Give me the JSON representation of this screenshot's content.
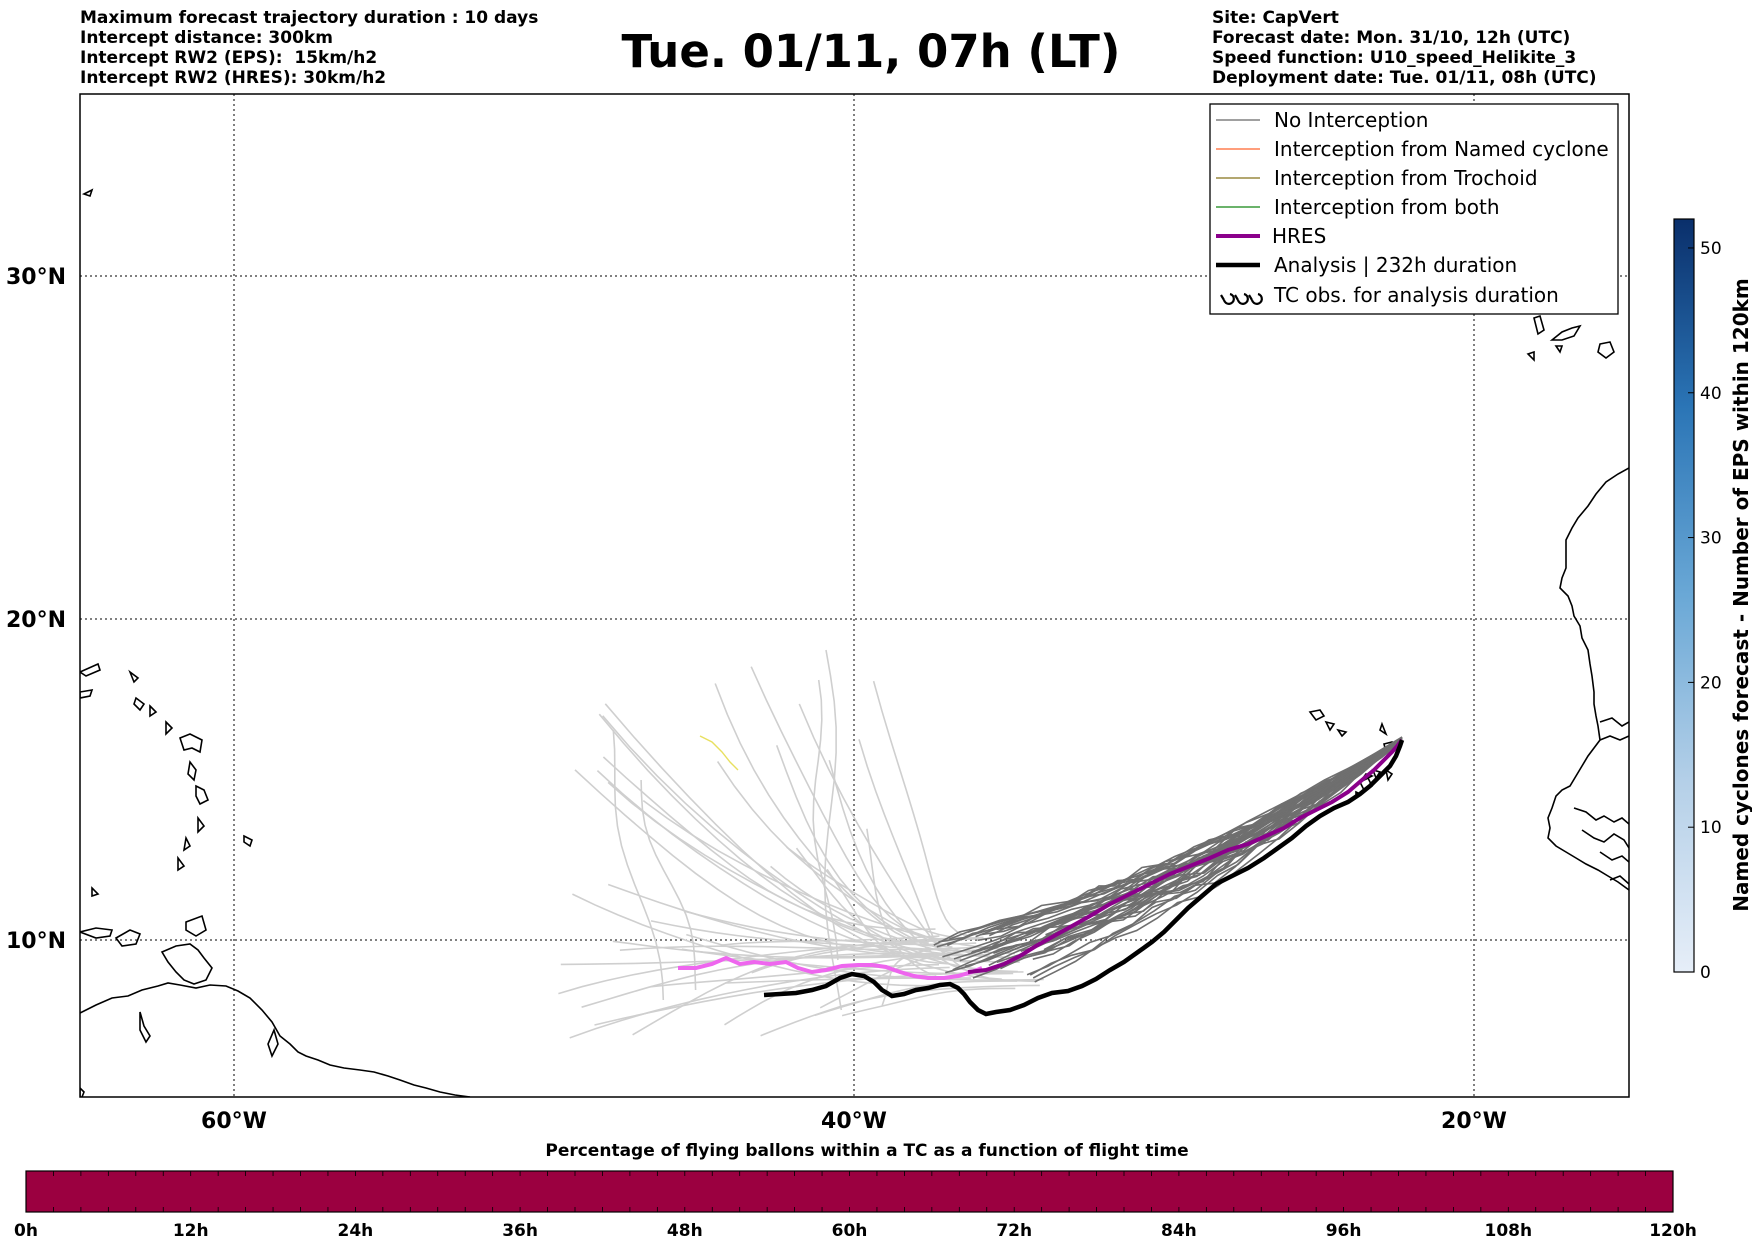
{
  "header": {
    "left_lines": [
      "Maximum forecast trajectory duration : 10 days",
      "Intercept distance: 300km",
      "Intercept RW2 (EPS):  15km/h2",
      "Intercept RW2 (HRES): 30km/h2"
    ],
    "title": "Tue. 01/11, 07h (LT)",
    "right_lines": [
      "Site: CapVert",
      "Forecast date: Mon. 31/10, 12h (UTC)",
      "Speed function: U10_speed_Helikite_3",
      "Deployment date: Tue. 01/11, 08h (UTC)"
    ]
  },
  "map": {
    "lat_labels": [
      "30°N",
      "20°N",
      "10°N"
    ],
    "lon_labels": [
      "60°W",
      "40°W",
      "20°W"
    ],
    "extent": {
      "lon_min": -65,
      "lon_max": -15,
      "lat_min": 5.2,
      "lat_max": 35.5
    },
    "gridlines": {
      "lons": [
        -60,
        -40,
        -20
      ],
      "lats": [
        30,
        20,
        10
      ]
    }
  },
  "legend": {
    "items": [
      {
        "label": "No Interception",
        "color": "#808080",
        "kind": "line-thin"
      },
      {
        "label": "Interception from Named cyclone",
        "color": "#ff7f50",
        "kind": "line-thin"
      },
      {
        "label": "Interception from Trochoid",
        "color": "#9a8a40",
        "kind": "line-thin"
      },
      {
        "label": "Interception from both",
        "color": "#3a9a3a",
        "kind": "line-thin"
      },
      {
        "label": "HRES",
        "color": "#8b008b",
        "kind": "line-thick"
      },
      {
        "label": "Analysis | 232h duration",
        "color": "#000000",
        "kind": "line-thick"
      },
      {
        "label": "TC obs. for analysis duration",
        "color": "#000000",
        "kind": "symbol"
      }
    ]
  },
  "colorbar_right": {
    "title": "Named cyclones forecast - Number of EPS within 120km",
    "ticks": [
      "0",
      "10",
      "20",
      "30",
      "40",
      "50"
    ],
    "range": [
      0,
      52
    ],
    "color_low": "#e6eef8",
    "color_high": "#0a2f6b"
  },
  "colorbar_bottom": {
    "title": "Percentage of flying ballons within a TC as a function of flight time",
    "ticks": [
      "0h",
      "12h",
      "24h",
      "36h",
      "48h",
      "60h",
      "72h",
      "84h",
      "96h",
      "108h",
      "120h"
    ],
    "color": "#9b0040"
  },
  "trajectories": {
    "analysis_color": "#000000",
    "hres_color": "#8b008b",
    "hres_old_color": "#ee66ee",
    "recent_color": "#6f6f6f",
    "old_color": "#cfcfcf",
    "trochoid_color": "#e8e060"
  }
}
